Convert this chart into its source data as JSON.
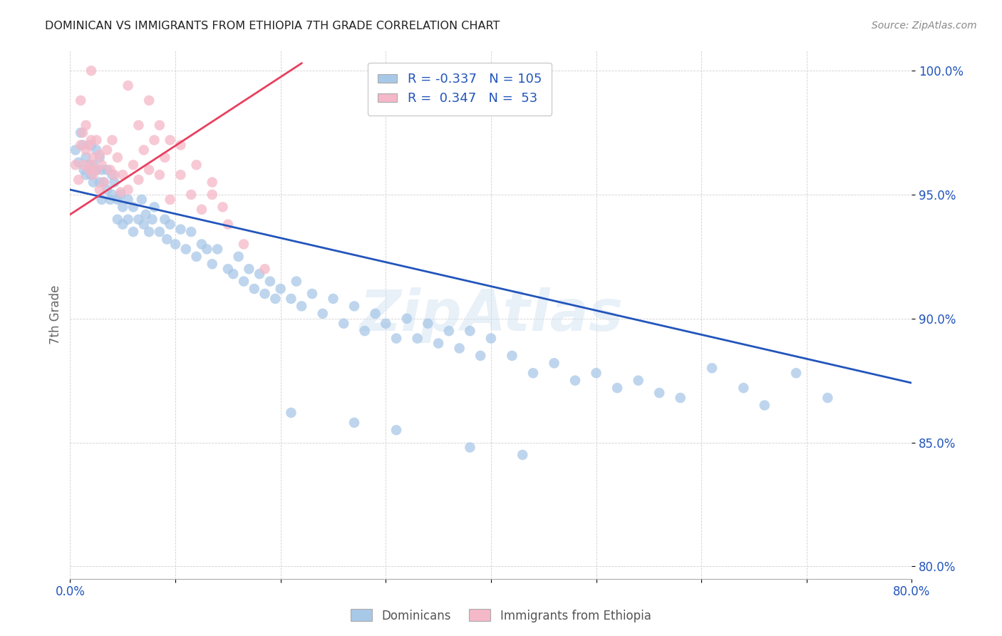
{
  "title": "DOMINICAN VS IMMIGRANTS FROM ETHIOPIA 7TH GRADE CORRELATION CHART",
  "source": "Source: ZipAtlas.com",
  "ylabel": "7th Grade",
  "xmin": 0.0,
  "xmax": 0.8,
  "ymin": 0.795,
  "ymax": 1.008,
  "yticks": [
    0.8,
    0.85,
    0.9,
    0.95,
    1.0
  ],
  "ytick_labels": [
    "80.0%",
    "85.0%",
    "90.0%",
    "95.0%",
    "100.0%"
  ],
  "xticks": [
    0.0,
    0.1,
    0.2,
    0.3,
    0.4,
    0.5,
    0.6,
    0.7,
    0.8
  ],
  "xtick_labels": [
    "0.0%",
    "",
    "",
    "",
    "",
    "",
    "",
    "",
    "80.0%"
  ],
  "blue_color": "#a8c8e8",
  "pink_color": "#f5b8c8",
  "blue_line_color": "#2255bb",
  "pink_line_color": "#e84060",
  "legend_R_blue": "-0.337",
  "legend_N_blue": "105",
  "legend_R_pink": "0.347",
  "legend_N_pink": "53",
  "watermark": "ZipAtlas",
  "dominicans_label": "Dominicans",
  "ethiopia_label": "Immigrants from Ethiopia",
  "blue_trendline_x": [
    0.0,
    0.8
  ],
  "blue_trendline_y": [
    0.952,
    0.874
  ],
  "pink_trendline_x": [
    0.0,
    0.22
  ],
  "pink_trendline_y": [
    0.942,
    1.003
  ],
  "blue_scatter_x": [
    0.005,
    0.008,
    0.01,
    0.012,
    0.013,
    0.015,
    0.015,
    0.018,
    0.02,
    0.02,
    0.022,
    0.022,
    0.025,
    0.025,
    0.028,
    0.028,
    0.03,
    0.03,
    0.032,
    0.035,
    0.035,
    0.038,
    0.04,
    0.04,
    0.042,
    0.045,
    0.045,
    0.048,
    0.05,
    0.05,
    0.055,
    0.055,
    0.06,
    0.06,
    0.065,
    0.068,
    0.07,
    0.072,
    0.075,
    0.078,
    0.08,
    0.085,
    0.09,
    0.092,
    0.095,
    0.1,
    0.105,
    0.11,
    0.115,
    0.12,
    0.125,
    0.13,
    0.135,
    0.14,
    0.15,
    0.155,
    0.16,
    0.165,
    0.17,
    0.175,
    0.18,
    0.185,
    0.19,
    0.195,
    0.2,
    0.21,
    0.215,
    0.22,
    0.23,
    0.24,
    0.25,
    0.26,
    0.27,
    0.28,
    0.29,
    0.3,
    0.31,
    0.32,
    0.33,
    0.34,
    0.35,
    0.36,
    0.37,
    0.38,
    0.39,
    0.4,
    0.42,
    0.44,
    0.46,
    0.48,
    0.5,
    0.52,
    0.54,
    0.56,
    0.58,
    0.61,
    0.64,
    0.66,
    0.69,
    0.72,
    0.21,
    0.31,
    0.38,
    0.27,
    0.43
  ],
  "blue_scatter_y": [
    0.968,
    0.963,
    0.975,
    0.97,
    0.96,
    0.965,
    0.958,
    0.962,
    0.97,
    0.958,
    0.962,
    0.955,
    0.968,
    0.96,
    0.965,
    0.955,
    0.96,
    0.948,
    0.955,
    0.96,
    0.952,
    0.948,
    0.958,
    0.95,
    0.955,
    0.948,
    0.94,
    0.95,
    0.945,
    0.938,
    0.948,
    0.94,
    0.945,
    0.935,
    0.94,
    0.948,
    0.938,
    0.942,
    0.935,
    0.94,
    0.945,
    0.935,
    0.94,
    0.932,
    0.938,
    0.93,
    0.936,
    0.928,
    0.935,
    0.925,
    0.93,
    0.928,
    0.922,
    0.928,
    0.92,
    0.918,
    0.925,
    0.915,
    0.92,
    0.912,
    0.918,
    0.91,
    0.915,
    0.908,
    0.912,
    0.908,
    0.915,
    0.905,
    0.91,
    0.902,
    0.908,
    0.898,
    0.905,
    0.895,
    0.902,
    0.898,
    0.892,
    0.9,
    0.892,
    0.898,
    0.89,
    0.895,
    0.888,
    0.895,
    0.885,
    0.892,
    0.885,
    0.878,
    0.882,
    0.875,
    0.878,
    0.872,
    0.875,
    0.87,
    0.868,
    0.88,
    0.872,
    0.865,
    0.878,
    0.868,
    0.862,
    0.855,
    0.848,
    0.858,
    0.845
  ],
  "pink_scatter_x": [
    0.005,
    0.008,
    0.01,
    0.012,
    0.013,
    0.015,
    0.015,
    0.018,
    0.018,
    0.02,
    0.02,
    0.022,
    0.022,
    0.025,
    0.025,
    0.028,
    0.028,
    0.03,
    0.032,
    0.035,
    0.038,
    0.04,
    0.042,
    0.045,
    0.048,
    0.05,
    0.055,
    0.06,
    0.065,
    0.07,
    0.075,
    0.08,
    0.085,
    0.09,
    0.095,
    0.105,
    0.115,
    0.125,
    0.135,
    0.145,
    0.01,
    0.02,
    0.055,
    0.065,
    0.075,
    0.085,
    0.095,
    0.105,
    0.12,
    0.135,
    0.15,
    0.165,
    0.185
  ],
  "pink_scatter_y": [
    0.962,
    0.956,
    0.97,
    0.975,
    0.962,
    0.968,
    0.978,
    0.97,
    0.96,
    0.972,
    0.962,
    0.965,
    0.958,
    0.972,
    0.96,
    0.966,
    0.952,
    0.962,
    0.955,
    0.968,
    0.96,
    0.972,
    0.958,
    0.965,
    0.951,
    0.958,
    0.952,
    0.962,
    0.956,
    0.968,
    0.96,
    0.972,
    0.958,
    0.965,
    0.948,
    0.958,
    0.95,
    0.944,
    0.955,
    0.945,
    0.988,
    1.0,
    0.994,
    0.978,
    0.988,
    0.978,
    0.972,
    0.97,
    0.962,
    0.95,
    0.938,
    0.93,
    0.92
  ]
}
